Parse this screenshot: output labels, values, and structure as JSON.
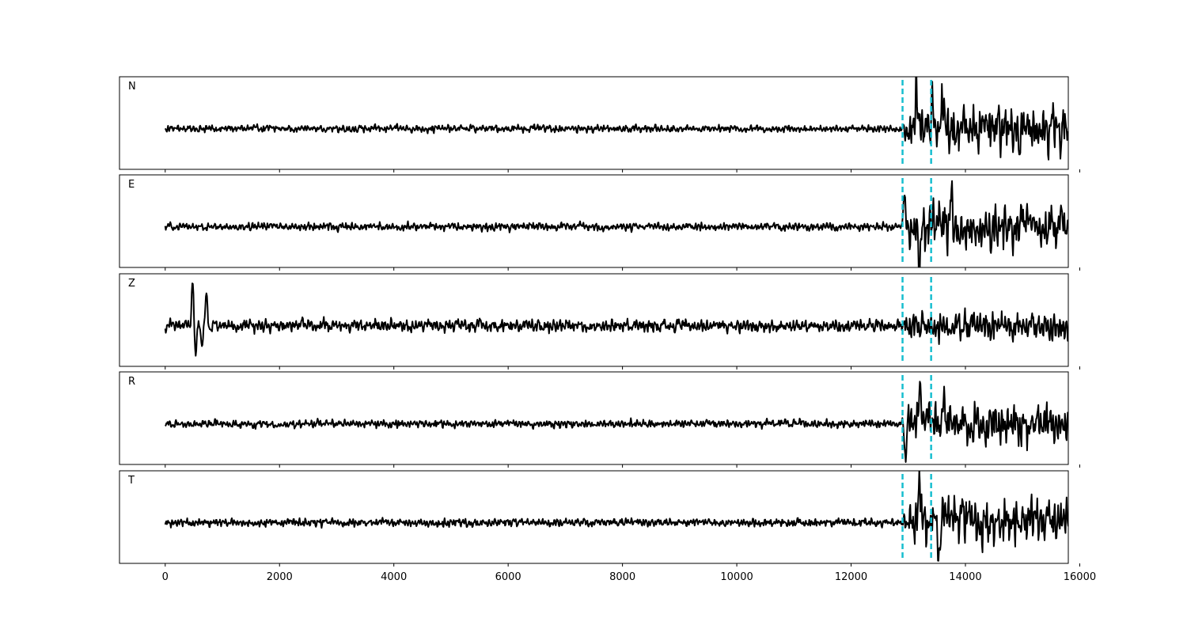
{
  "chart_data": {
    "type": "line",
    "title": "",
    "xlabel": "",
    "ylabel": "",
    "xlim": [
      -800,
      15800
    ],
    "xticks": [
      0,
      2000,
      4000,
      6000,
      8000,
      10000,
      12000,
      14000,
      16000
    ],
    "xtick_labels": [
      "0",
      "2000",
      "4000",
      "6000",
      "8000",
      "10000",
      "12000",
      "14000",
      "16000"
    ],
    "grid": false,
    "markers": {
      "color": "#17becf",
      "style": "dashed",
      "x": [
        12900,
        13400
      ]
    },
    "series": [
      {
        "name": "N",
        "color": "#000000",
        "x_start": 0,
        "x_end": 15800,
        "pre_amplitude": 0.12,
        "post_amplitude": 0.78,
        "onset": 12900,
        "spikes": [
          [
            13150,
            0.85
          ],
          [
            13420,
            0.95
          ],
          [
            13600,
            0.85
          ]
        ]
      },
      {
        "name": "E",
        "color": "#000000",
        "x_start": 0,
        "x_end": 15800,
        "pre_amplitude": 0.13,
        "post_amplitude": 0.72,
        "onset": 12900,
        "spikes": [
          [
            12930,
            0.75
          ],
          [
            13200,
            -0.88
          ],
          [
            13750,
            0.78
          ]
        ]
      },
      {
        "name": "Z",
        "color": "#000000",
        "x_start": 0,
        "x_end": 15800,
        "pre_amplitude": 0.2,
        "post_amplitude": 0.48,
        "onset": 12900,
        "spikes": [
          [
            480,
            1.0
          ],
          [
            530,
            -0.68
          ],
          [
            720,
            0.8
          ],
          [
            640,
            -0.4
          ]
        ]
      },
      {
        "name": "R",
        "color": "#000000",
        "x_start": 0,
        "x_end": 15800,
        "pre_amplitude": 0.13,
        "post_amplitude": 0.7,
        "onset": 12900,
        "spikes": [
          [
            12950,
            -0.82
          ],
          [
            13200,
            0.85
          ],
          [
            13620,
            0.78
          ]
        ]
      },
      {
        "name": "T",
        "color": "#000000",
        "x_start": 0,
        "x_end": 15800,
        "pre_amplitude": 0.13,
        "post_amplitude": 0.72,
        "onset": 12900,
        "spikes": [
          [
            13200,
            0.95
          ],
          [
            13550,
            -0.75
          ],
          [
            13950,
            0.72
          ]
        ]
      }
    ]
  }
}
